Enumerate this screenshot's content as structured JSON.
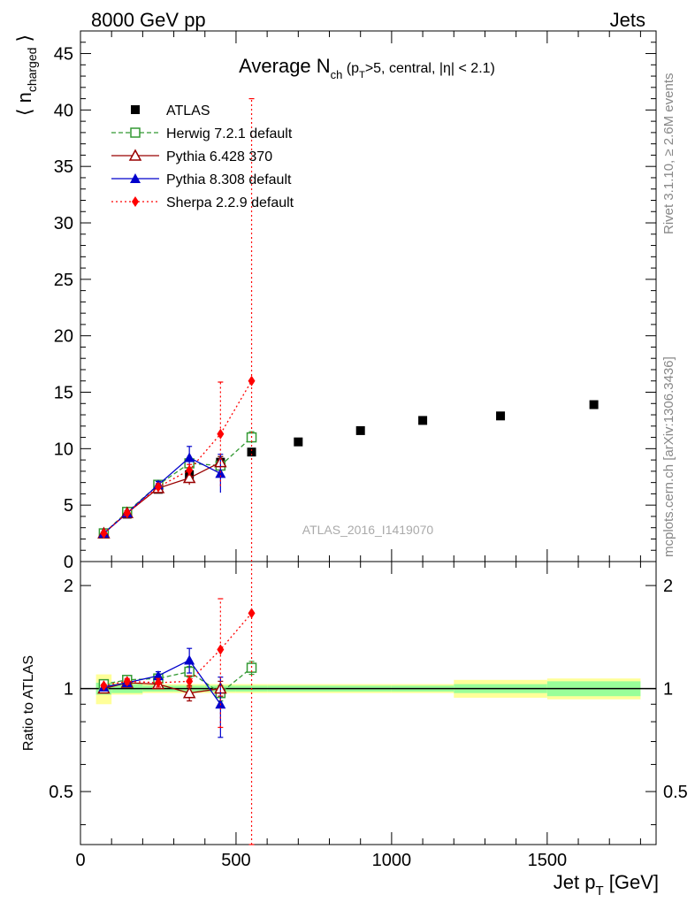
{
  "header": {
    "left": "8000 GeV pp",
    "right": "Jets"
  },
  "side_labels": {
    "rivet": "Rivet 3.1.10, ≥ 2.6M events",
    "mcplots": "mcplots.cern.ch [arXiv:1306.3436]"
  },
  "chart_data": [
    {
      "type": "scatter",
      "panel": "main",
      "title_main": "Average N",
      "title_sub": "ch",
      "title_rest": " (p",
      "title_rest_sub": "T",
      "title_tail": ">5, central, |η| < 2.1)",
      "ylabel_prefix": "⟨ n",
      "ylabel_sub": "charged",
      "ylabel_suffix": " ⟩",
      "watermark": "ATLAS_2016_I1419070",
      "xlim": [
        0,
        1850
      ],
      "ylim": [
        0,
        47
      ],
      "y_ticks": [
        0,
        5,
        10,
        15,
        20,
        25,
        30,
        35,
        40,
        45
      ],
      "legend_position": "top-left",
      "series": [
        {
          "name": "ATLAS",
          "color": "#000000",
          "marker": "square-filled",
          "line": "none",
          "x": [
            75,
            150,
            250,
            350,
            450,
            550,
            700,
            900,
            1100,
            1350,
            1650
          ],
          "y": [
            2.5,
            4.2,
            6.4,
            7.7,
            8.8,
            9.7,
            10.6,
            11.6,
            12.5,
            12.9,
            13.9
          ]
        },
        {
          "name": "Herwig 7.2.1 default",
          "color": "#339933",
          "marker": "square-open",
          "line": "dashed",
          "x": [
            75,
            150,
            250,
            350,
            450,
            550
          ],
          "y": [
            2.5,
            4.4,
            6.8,
            8.7,
            8.5,
            11.0
          ],
          "err": [
            0.1,
            0.2,
            0.3,
            0.5,
            0.8,
            0.5
          ]
        },
        {
          "name": "Pythia 6.428 370",
          "color": "#990000",
          "marker": "triangle-open",
          "line": "solid",
          "x": [
            75,
            150,
            250,
            350,
            450
          ],
          "y": [
            2.5,
            4.3,
            6.5,
            7.4,
            8.8
          ],
          "err": [
            0.1,
            0.2,
            0.3,
            0.6,
            0.5
          ]
        },
        {
          "name": "Pythia 8.308 default",
          "color": "#0000cc",
          "marker": "triangle-filled",
          "line": "solid",
          "x": [
            75,
            150,
            250,
            350,
            450
          ],
          "y": [
            2.5,
            4.3,
            6.8,
            9.2,
            7.8
          ],
          "err": [
            0.1,
            0.2,
            0.3,
            1.0,
            1.7
          ]
        },
        {
          "name": "Sherpa 2.2.9 default",
          "color": "#ff0000",
          "marker": "diamond-filled",
          "line": "dotted",
          "x": [
            75,
            150,
            250,
            350,
            450,
            550
          ],
          "y": [
            2.5,
            4.3,
            6.6,
            8.1,
            11.3,
            16.0
          ],
          "err": [
            0.1,
            0.2,
            0.3,
            0.5,
            4.6,
            25.0
          ]
        }
      ]
    },
    {
      "type": "scatter",
      "panel": "ratio",
      "ylabel": "Ratio to ATLAS",
      "xlabel_main": "Jet p",
      "xlabel_sub": "T",
      "xlabel_unit": " [GeV]",
      "xlim": [
        0,
        1850
      ],
      "ylim": [
        0.35,
        2.35
      ],
      "log_y": true,
      "x_ticks": [
        0,
        500,
        1000,
        1500
      ],
      "y_ticks": [
        0.5,
        1,
        2
      ],
      "bands": {
        "bins": [
          [
            50,
            100
          ],
          [
            100,
            200
          ],
          [
            200,
            300
          ],
          [
            300,
            400
          ],
          [
            400,
            500
          ],
          [
            500,
            600
          ],
          [
            600,
            800
          ],
          [
            800,
            1000
          ],
          [
            1000,
            1200
          ],
          [
            1200,
            1500
          ],
          [
            1500,
            1800
          ]
        ],
        "inner": [
          0.04,
          0.03,
          0.02,
          0.02,
          0.02,
          0.02,
          0.02,
          0.02,
          0.02,
          0.03,
          0.05
        ],
        "outer": [
          0.1,
          0.04,
          0.03,
          0.03,
          0.03,
          0.03,
          0.03,
          0.03,
          0.03,
          0.06,
          0.07
        ]
      },
      "series": [
        {
          "name": "Herwig 7.2.1 default",
          "x": [
            75,
            150,
            250,
            350,
            450,
            550
          ],
          "y": [
            1.03,
            1.06,
            1.07,
            1.12,
            0.97,
            1.15
          ],
          "err": [
            0.01,
            0.02,
            0.03,
            0.04,
            0.05,
            0.05
          ]
        },
        {
          "name": "Pythia 6.428 370",
          "x": [
            75,
            150,
            250,
            350,
            450
          ],
          "y": [
            1.0,
            1.04,
            1.03,
            0.97,
            1.0
          ],
          "err": [
            0.01,
            0.02,
            0.03,
            0.05,
            0.05
          ]
        },
        {
          "name": "Pythia 8.308 default",
          "x": [
            75,
            150,
            250,
            350,
            450
          ],
          "y": [
            1.01,
            1.04,
            1.09,
            1.21,
            0.9
          ],
          "err": [
            0.01,
            0.02,
            0.03,
            0.1,
            0.18
          ]
        },
        {
          "name": "Sherpa 2.2.9 default",
          "x": [
            75,
            150,
            250,
            350,
            450,
            550
          ],
          "y": [
            1.02,
            1.05,
            1.04,
            1.05,
            1.3,
            1.66
          ],
          "err": [
            0.01,
            0.02,
            0.03,
            0.04,
            0.53,
            1.5
          ]
        }
      ]
    }
  ]
}
